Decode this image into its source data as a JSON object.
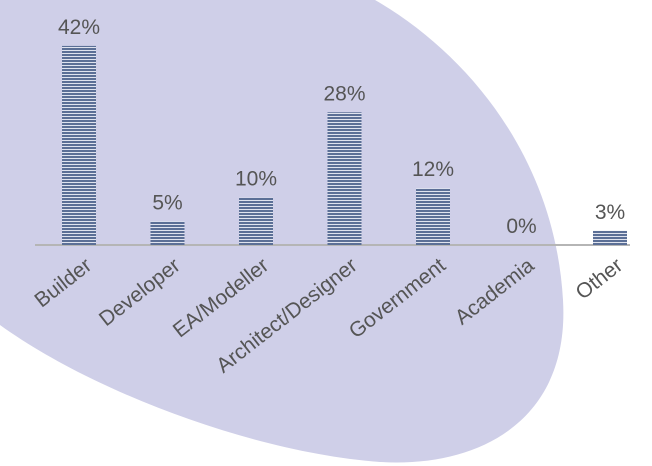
{
  "chart_data": {
    "type": "bar",
    "categories": [
      "Builder",
      "Developer",
      "EA/Modeller",
      "Architect/Designer",
      "Government",
      "Academia",
      "Other"
    ],
    "values": [
      42,
      5,
      10,
      28,
      12,
      0,
      3
    ],
    "value_labels": [
      "42%",
      "5%",
      "10%",
      "28%",
      "12%",
      "0%",
      "3%"
    ],
    "color": "#5b6f96"
  }
}
